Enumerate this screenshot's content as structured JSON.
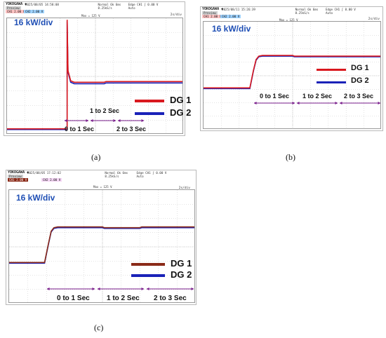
{
  "colors": {
    "dg1": "#d9181e",
    "dg2": "#1a22b8",
    "dg1_c": "#8a2a18",
    "arrow": "#7a1e8c",
    "accent": "#1f4fb5"
  },
  "panels": [
    {
      "caption": "(a)",
      "header": {
        "brand": "YOKOGAWA ◆",
        "timestamp": "2025/08/05 14:58:08",
        "preview": "Preview",
        "sample1": "Normal 6k 6ms",
        "sample2": "8.25kS/s",
        "trigger": "Edge CH1 ∫ 0.00 V",
        "trig_mode": "Auto",
        "ch1": "CH1 2.00 V",
        "ch2": "CH2 2.00 V"
      },
      "max_readout": "Max = 125 V",
      "time_div": "2s/div",
      "scale": "16 kW/div",
      "legend": [
        {
          "name": "DG 1"
        },
        {
          "name": "DG 2"
        }
      ],
      "segments": [
        "0 to 1 Sec",
        "1 to 2 Sec",
        "2 to 3 Sec"
      ]
    },
    {
      "caption": "(b)",
      "header": {
        "brand": "YOKOGAWA ◆",
        "timestamp": "2025/08/11 15:26:39",
        "preview": "Preview",
        "sample1": "Normal 6k 6ms",
        "sample2": "8.25kS/s",
        "trigger": "Edge CH1 ∫ 0.00 V",
        "trig_mode": "Auto",
        "ch1": "CH1 2.00 V",
        "ch2": "CH2 2.00 V"
      },
      "max_readout": "Max = 125 V",
      "time_div": "2s/div",
      "scale": "16 kW/div",
      "legend": [
        {
          "name": "DG 1"
        },
        {
          "name": "DG 2"
        }
      ],
      "segments": [
        "0 to 1 Sec",
        "1 to 2 Sec",
        "2 to 3 Sec"
      ]
    },
    {
      "caption": "(c)",
      "header": {
        "brand": "YOKOGAWA ◆",
        "timestamp": "2025/08/05 17:12:02",
        "preview": "Preview",
        "sample1": "Normal 6k 6ms",
        "sample2": "8.25kS/s",
        "trigger": "Edge CH1 ∫ 0.00 V",
        "trig_mode": "Auto",
        "ch1": "CH1 2.00 V",
        "ch2": "CH2 2.00 V"
      },
      "max_readout": "Max = 125 V",
      "time_div": "2s/div",
      "scale": "16 kW/div",
      "legend": [
        {
          "name": "DG 1"
        },
        {
          "name": "DG 2"
        }
      ],
      "segments": [
        "0 to 1 Sec",
        "1 to 2 Sec",
        "2 to 3 Sec"
      ]
    }
  ],
  "chart_data": [
    {
      "type": "line",
      "title": "",
      "unit": "kW/div",
      "scale_per_div": 16,
      "xlim": [
        0,
        10
      ],
      "ylim": [
        0,
        8
      ],
      "series": [
        {
          "name": "DG 1",
          "x": [
            0,
            3.4,
            3.4,
            3.45,
            3.6,
            3.8,
            5.5,
            5.6,
            10
          ],
          "y": [
            0.4,
            0.4,
            7.9,
            4.4,
            3.7,
            3.6,
            3.6,
            3.65,
            3.65
          ]
        },
        {
          "name": "DG 2",
          "x": [
            0,
            3.4,
            3.4,
            3.45,
            3.6,
            3.8,
            5.5,
            5.6,
            10
          ],
          "y": [
            0.35,
            0.35,
            7.8,
            4.3,
            3.6,
            3.5,
            3.5,
            3.55,
            3.55
          ]
        }
      ]
    },
    {
      "type": "line",
      "title": "",
      "unit": "kW/div",
      "scale_per_div": 16,
      "xlim": [
        0,
        10
      ],
      "ylim": [
        0,
        8
      ],
      "series": [
        {
          "name": "DG 1",
          "x": [
            0,
            2.6,
            2.8,
            2.95,
            3.1,
            3.3,
            5.0,
            5.1,
            10
          ],
          "y": [
            3.1,
            3.1,
            4.4,
            5.2,
            5.45,
            5.5,
            5.5,
            5.45,
            5.45
          ]
        },
        {
          "name": "DG 2",
          "x": [
            0,
            2.6,
            2.8,
            2.95,
            3.1,
            3.3,
            5.0,
            5.1,
            10
          ],
          "y": [
            3.05,
            3.05,
            4.35,
            5.15,
            5.4,
            5.45,
            5.45,
            5.4,
            5.4
          ]
        }
      ]
    },
    {
      "type": "line",
      "title": "",
      "unit": "kW/div",
      "scale_per_div": 16,
      "xlim": [
        0,
        10
      ],
      "ylim": [
        0,
        8
      ],
      "series": [
        {
          "name": "DG 1",
          "x": [
            0,
            1.9,
            2.1,
            2.25,
            2.4,
            2.6,
            5.0,
            5.1,
            7.0,
            7.1,
            10
          ],
          "y": [
            2.9,
            2.9,
            4.2,
            5.1,
            5.35,
            5.4,
            5.4,
            5.35,
            5.35,
            5.4,
            5.4
          ]
        },
        {
          "name": "DG 2",
          "x": [
            0,
            1.9,
            2.1,
            2.25,
            2.4,
            2.6,
            5.0,
            5.1,
            7.0,
            7.1,
            10
          ],
          "y": [
            2.85,
            2.85,
            4.15,
            5.05,
            5.3,
            5.35,
            5.35,
            5.3,
            5.3,
            5.35,
            5.35
          ]
        }
      ]
    }
  ]
}
